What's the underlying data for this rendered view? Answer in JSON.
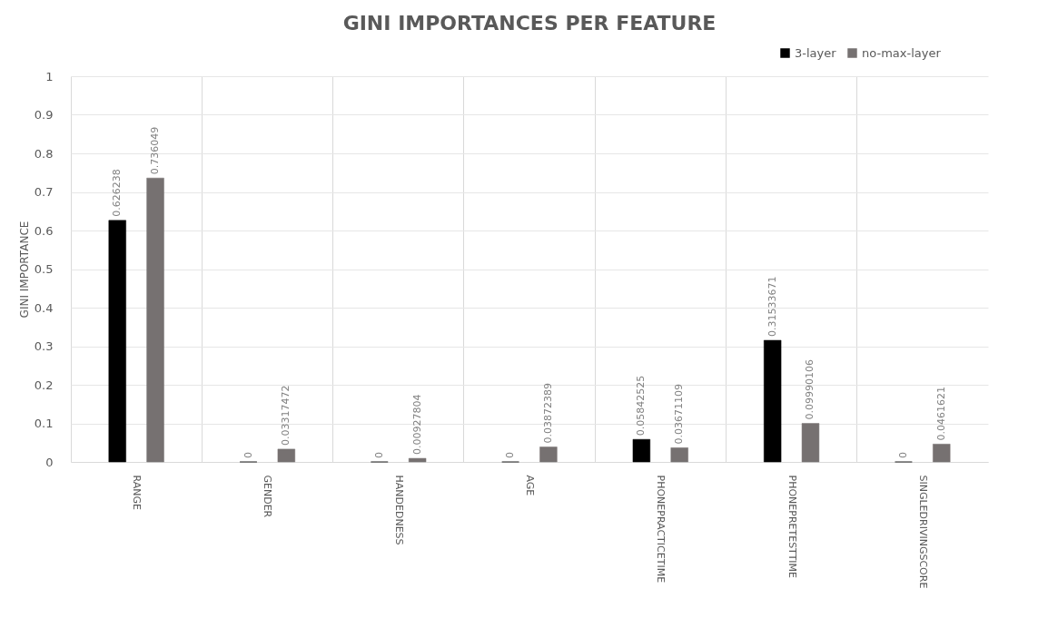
{
  "chart_data": {
    "type": "bar",
    "title": "GINI IMPORTANCES PER FEATURE",
    "ylabel": "GINI IMPORTANCE",
    "categories": [
      "RANGE",
      "GENDER",
      "HANDEDNESS",
      "AGE",
      "PHONEPRACTICETIME",
      "PHONEPRETESTTIME",
      "SINGLEDRIVINGSCORE"
    ],
    "series": [
      {
        "name": "3-layer",
        "color": "#000000",
        "values": [
          0.626238,
          0,
          0,
          0,
          0.05842525,
          0.31533671,
          0
        ]
      },
      {
        "name": "no-max-layer",
        "color": "#767171",
        "values": [
          0.736049,
          0.03317472,
          0.00927804,
          0.03872389,
          0.03671109,
          0.09990106,
          0.0461621
        ]
      }
    ],
    "ylim": [
      0,
      1
    ],
    "yticks": [
      0,
      0.1,
      0.2,
      0.3,
      0.4,
      0.5,
      0.6,
      0.7,
      0.8,
      0.9,
      1
    ],
    "grid": true,
    "legend": "top right",
    "data_labels": true
  }
}
